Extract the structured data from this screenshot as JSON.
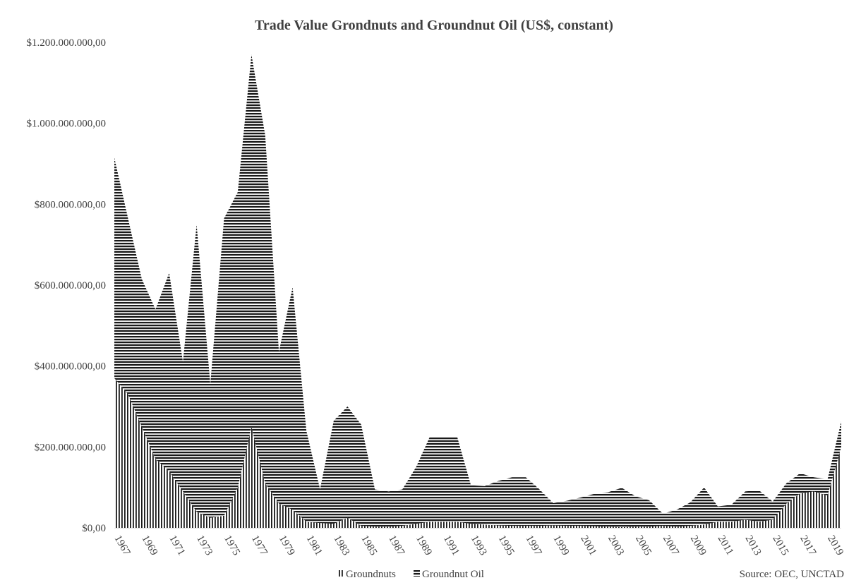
{
  "chart_data": {
    "type": "area",
    "stacked": true,
    "title": "Trade Value Grondnuts and Groundnut Oil (US$, constant)",
    "source": "Source: OEC, UNCTAD",
    "xlabel": "",
    "ylabel": "",
    "ylim": [
      0,
      1200000000
    ],
    "yticks": [
      0,
      200000000,
      400000000,
      600000000,
      800000000,
      1000000000,
      1200000000
    ],
    "ytick_labels": [
      "$0,00",
      "$200.000.000,00",
      "$400.000.000,00",
      "$600.000.000,00",
      "$800.000.000,00",
      "$1.000.000.000,00",
      "$1.200.000.000,00"
    ],
    "x": [
      1967,
      1968,
      1969,
      1970,
      1971,
      1972,
      1973,
      1974,
      1975,
      1976,
      1977,
      1978,
      1979,
      1980,
      1981,
      1982,
      1983,
      1984,
      1985,
      1986,
      1987,
      1988,
      1989,
      1990,
      1991,
      1992,
      1993,
      1994,
      1995,
      1996,
      1997,
      1998,
      1999,
      2000,
      2001,
      2002,
      2003,
      2004,
      2005,
      2006,
      2007,
      2008,
      2009,
      2010,
      2011,
      2012,
      2013,
      2014,
      2015,
      2016,
      2017,
      2018,
      2019,
      2020
    ],
    "xtick_labels": [
      "1967",
      "1969",
      "1971",
      "1973",
      "1975",
      "1977",
      "1979",
      "1981",
      "1983",
      "1985",
      "1987",
      "1989",
      "1991",
      "1993",
      "1995",
      "1997",
      "1999",
      "2001",
      "2003",
      "2005",
      "2007",
      "2009",
      "2011",
      "2013",
      "2015",
      "2017",
      "2019"
    ],
    "grid": false,
    "legend_placement": "bottom",
    "series": [
      {
        "name": "Groundnuts",
        "pattern": "vertical-lines",
        "values": [
          370000000,
          330000000,
          250000000,
          170000000,
          140000000,
          90000000,
          40000000,
          25000000,
          30000000,
          100000000,
          250000000,
          110000000,
          60000000,
          45000000,
          15000000,
          12000000,
          10000000,
          25000000,
          5000000,
          3000000,
          3000000,
          5000000,
          10000000,
          15000000,
          15000000,
          15000000,
          10000000,
          8000000,
          6000000,
          5000000,
          5000000,
          5000000,
          6000000,
          5000000,
          5000000,
          4000000,
          3000000,
          2000000,
          3000000,
          3000000,
          5000000,
          3000000,
          5000000,
          8000000,
          15000000,
          15000000,
          20000000,
          15000000,
          20000000,
          60000000,
          85000000,
          90000000,
          80000000,
          200000000
        ]
      },
      {
        "name": "Groundnut Oil",
        "pattern": "horizontal-lines",
        "values": [
          545000000,
          435000000,
          365000000,
          370000000,
          490000000,
          320000000,
          710000000,
          330000000,
          735000000,
          730000000,
          920000000,
          860000000,
          375000000,
          550000000,
          225000000,
          83000000,
          255000000,
          275000000,
          250000000,
          92000000,
          87000000,
          90000000,
          140000000,
          210000000,
          210000000,
          210000000,
          95000000,
          95000000,
          110000000,
          120000000,
          120000000,
          90000000,
          55000000,
          62000000,
          70000000,
          80000000,
          85000000,
          97000000,
          75000000,
          65000000,
          30000000,
          42000000,
          58000000,
          92000000,
          38000000,
          42000000,
          70000000,
          78000000,
          45000000,
          50000000,
          50000000,
          35000000,
          40000000,
          63000000
        ]
      }
    ]
  }
}
